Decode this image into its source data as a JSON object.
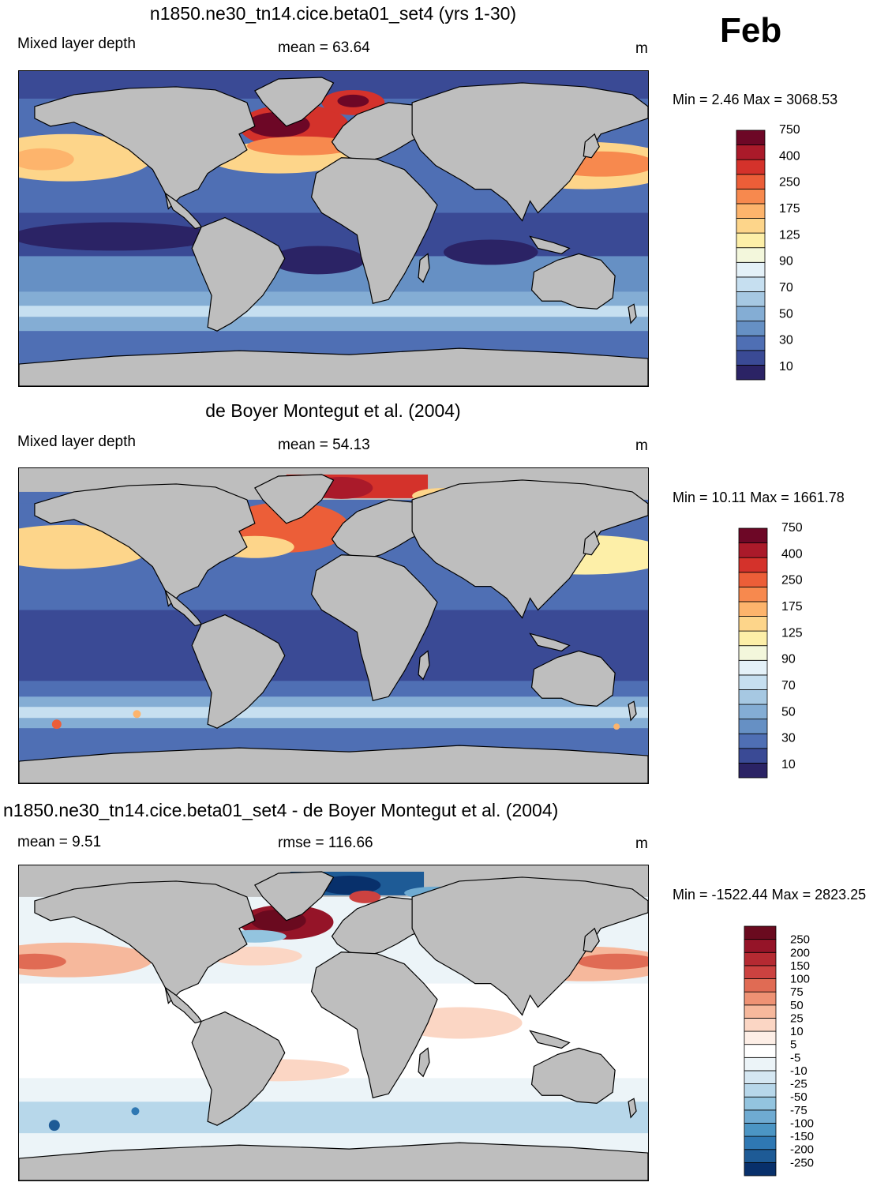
{
  "month": "Feb",
  "panels": [
    {
      "title": "n1850.ne30_tn14.cice.beta01_set4 (yrs 1-30)",
      "left_label": "Mixed layer depth",
      "center_label": "mean =  63.64",
      "units": "m",
      "minmax": "Min =   2.46 Max = 3068.53"
    },
    {
      "title": "de Boyer Montegut et al. (2004)",
      "left_label": "Mixed layer depth",
      "center_label": "mean =  54.13",
      "units": "m",
      "minmax": "Min =  10.11 Max = 1661.78"
    },
    {
      "title": "n1850.ne30_tn14.cice.beta01_set4 - de Boyer Montegut et al. (2004)",
      "left_label": "mean =   9.51",
      "center_label": "rmse = 116.66",
      "units": "m",
      "minmax": "Min = -1522.44 Max = 2823.25"
    }
  ],
  "colorbars": {
    "mld": {
      "colors": [
        "#2b2365",
        "#3a4a95",
        "#4f6fb4",
        "#6690c4",
        "#84add4",
        "#a6c8e2",
        "#c6dff0",
        "#e4f1f8",
        "#f3f7dc",
        "#fdefa8",
        "#fdd58a",
        "#fdb46c",
        "#f7894e",
        "#ec5e38",
        "#d4322b",
        "#aa1a2a",
        "#6d0726"
      ],
      "labels": [
        "10",
        "30",
        "50",
        "70",
        "90",
        "125",
        "175",
        "250",
        "400",
        "750"
      ]
    },
    "diff": {
      "colors": [
        "#08306b",
        "#1e5b96",
        "#2f78b3",
        "#4b95c4",
        "#6fabd2",
        "#93c4df",
        "#b7d7ea",
        "#d5e7f2",
        "#ecf4f8",
        "#ffffff",
        "#fdeee6",
        "#fbd6c4",
        "#f6b89c",
        "#ee9274",
        "#e06b54",
        "#cc4240",
        "#b52a32",
        "#951428",
        "#6a0a1f"
      ],
      "labels": [
        "250",
        "200",
        "150",
        "100",
        "75",
        "50",
        "25",
        "10",
        "5",
        "-5",
        "-10",
        "-25",
        "-50",
        "-75",
        "-100",
        "-150",
        "-200",
        "-250"
      ]
    }
  }
}
